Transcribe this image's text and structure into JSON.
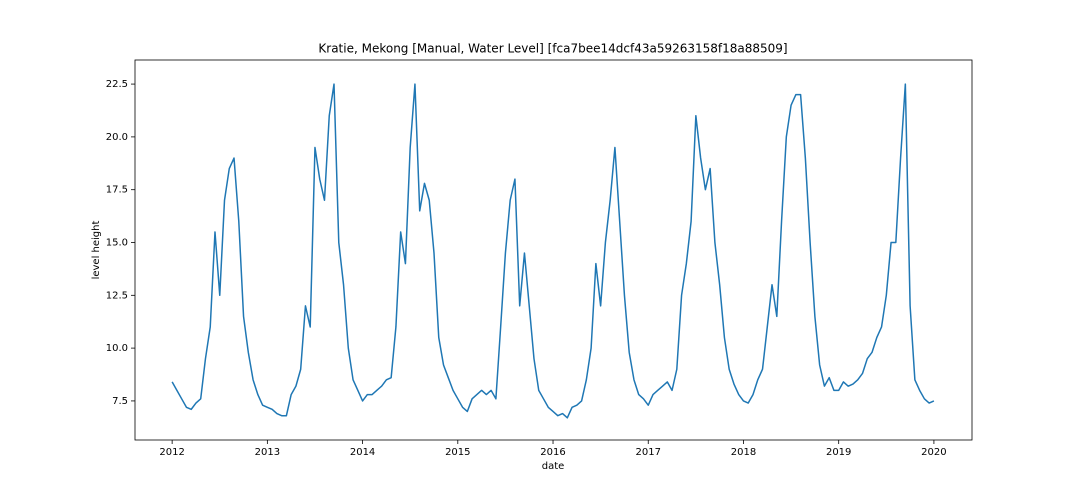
{
  "chart_data": {
    "type": "line",
    "title": "Kratie, Mekong [Manual, Water Level] [fca7bee14dcf43a59263158f18a88509]",
    "x_label": "date",
    "y_label": "level height",
    "x": [
      2012,
      2012.05,
      2012.1,
      2012.15,
      2012.2,
      2012.25,
      2012.3,
      2012.35,
      2012.4,
      2012.45,
      2012.5,
      2012.55,
      2012.6,
      2012.65,
      2012.7,
      2012.75,
      2012.8,
      2012.85,
      2012.9,
      2012.95,
      2013,
      2013.05,
      2013.1,
      2013.15,
      2013.2,
      2013.25,
      2013.3,
      2013.35,
      2013.4,
      2013.45,
      2013.5,
      2013.55,
      2013.6,
      2013.65,
      2013.7,
      2013.75,
      2013.8,
      2013.85,
      2013.9,
      2013.95,
      2014,
      2014.05,
      2014.1,
      2014.15,
      2014.2,
      2014.25,
      2014.3,
      2014.35,
      2014.4,
      2014.45,
      2014.5,
      2014.55,
      2014.6,
      2014.65,
      2014.7,
      2014.75,
      2014.8,
      2014.85,
      2014.9,
      2014.95,
      2015,
      2015.05,
      2015.1,
      2015.15,
      2015.2,
      2015.25,
      2015.3,
      2015.35,
      2015.4,
      2015.45,
      2015.5,
      2015.55,
      2015.6,
      2015.65,
      2015.7,
      2015.75,
      2015.8,
      2015.85,
      2015.9,
      2015.95,
      2016,
      2016.05,
      2016.1,
      2016.15,
      2016.2,
      2016.25,
      2016.3,
      2016.35,
      2016.4,
      2016.45,
      2016.5,
      2016.55,
      2016.6,
      2016.65,
      2016.7,
      2016.75,
      2016.8,
      2016.85,
      2016.9,
      2016.95,
      2017,
      2017.05,
      2017.1,
      2017.15,
      2017.2,
      2017.25,
      2017.3,
      2017.35,
      2017.4,
      2017.45,
      2017.5,
      2017.55,
      2017.6,
      2017.65,
      2017.7,
      2017.75,
      2017.8,
      2017.85,
      2017.9,
      2017.95,
      2018,
      2018.05,
      2018.1,
      2018.15,
      2018.2,
      2018.25,
      2018.3,
      2018.35,
      2018.4,
      2018.45,
      2018.5,
      2018.55,
      2018.6,
      2018.65,
      2018.7,
      2018.75,
      2018.8,
      2018.85,
      2018.9,
      2018.95,
      2019,
      2019.05,
      2019.1,
      2019.15,
      2019.2,
      2019.25,
      2019.3,
      2019.35,
      2019.4,
      2019.45,
      2019.5,
      2019.55,
      2019.6,
      2019.65,
      2019.7,
      2019.75,
      2019.8,
      2019.85,
      2019.9,
      2019.95,
      2020
    ],
    "series": [
      {
        "name": "level height",
        "color": "#1f77b4",
        "values": [
          8.4,
          8.0,
          7.6,
          7.2,
          7.1,
          7.4,
          7.6,
          9.5,
          11.0,
          15.5,
          12.5,
          17.0,
          18.5,
          19.0,
          16.0,
          11.5,
          9.8,
          8.5,
          7.8,
          7.3,
          7.2,
          7.1,
          6.9,
          6.8,
          6.8,
          7.8,
          8.2,
          9.0,
          12.0,
          11.0,
          19.5,
          18.0,
          17.0,
          21.0,
          22.5,
          15.0,
          13.0,
          10.0,
          8.5,
          8.0,
          7.5,
          7.8,
          7.8,
          8.0,
          8.2,
          8.5,
          8.6,
          11.0,
          15.5,
          14.0,
          19.5,
          22.5,
          16.5,
          17.8,
          17.0,
          14.5,
          10.5,
          9.2,
          8.6,
          8.0,
          7.6,
          7.2,
          7.0,
          7.6,
          7.8,
          8.0,
          7.8,
          8.0,
          7.6,
          11.0,
          14.5,
          17.0,
          18.0,
          12.0,
          14.5,
          12.0,
          9.5,
          8.0,
          7.6,
          7.2,
          7.0,
          6.8,
          6.9,
          6.7,
          7.2,
          7.3,
          7.5,
          8.5,
          10.0,
          14.0,
          12.0,
          15.0,
          17.0,
          19.5,
          16.0,
          12.5,
          9.8,
          8.5,
          7.8,
          7.6,
          7.3,
          7.8,
          8.0,
          8.2,
          8.4,
          8.0,
          9.0,
          12.5,
          14.0,
          16.0,
          21.0,
          19.0,
          17.5,
          18.5,
          15.0,
          13.0,
          10.5,
          9.0,
          8.3,
          7.8,
          7.5,
          7.4,
          7.8,
          8.5,
          9.0,
          11.0,
          13.0,
          11.5,
          16.0,
          20.0,
          21.5,
          22.0,
          22.0,
          19.0,
          15.0,
          11.5,
          9.2,
          8.2,
          8.6,
          8.0,
          8.0,
          8.4,
          8.2,
          8.3,
          8.5,
          8.8,
          9.5,
          9.8,
          10.5,
          11.0,
          12.5,
          15.0,
          15.0,
          19.0,
          22.5,
          12.0,
          8.5,
          8.0,
          7.6,
          7.4,
          7.5
        ]
      }
    ],
    "xlim": [
      2011.61,
      2020.4
    ],
    "ylim": [
      5.65,
      23.64
    ],
    "xticks": [
      2012,
      2013,
      2014,
      2015,
      2016,
      2017,
      2018,
      2019,
      2020
    ],
    "yticks": [
      7.5,
      {
        "value": 10,
        "label": "10.0"
      },
      12.5,
      {
        "value": 15,
        "label": "15.0"
      },
      17.5,
      {
        "value": 20,
        "label": "20.0"
      },
      22.5
    ]
  }
}
